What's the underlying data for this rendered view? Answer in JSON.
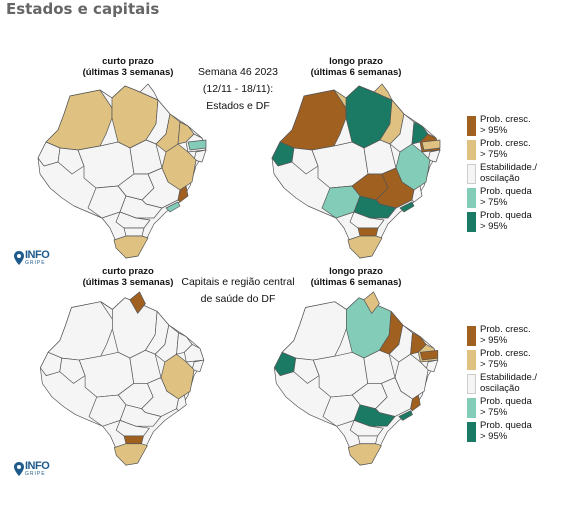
{
  "header": {
    "title": "Estados e capitais"
  },
  "colors": {
    "prob_cresc_95": "#a0601f",
    "prob_cresc_75": "#dfc282",
    "estabilidade": "#f5f5f5",
    "prob_queda_75": "#83cdb8",
    "prob_queda_95": "#1b7a64",
    "border": "#555555"
  },
  "top": {
    "short_title": "curto prazo",
    "short_subtitle": "(últimas 3 semanas)",
    "long_title": "longo prazo",
    "long_subtitle": "(últimas 6 semanas)",
    "center_line1": "Semana 46 2023",
    "center_line2": "(12/11 - 18/11):",
    "center_line3": "Estados e DF"
  },
  "bottom": {
    "short_title": "curto prazo",
    "short_subtitle": "(últimas 3 semanas)",
    "long_title": "longo prazo",
    "long_subtitle": "(últimas 6 semanas)",
    "center_line1": "Capitais e região central",
    "center_line2": "de saúde do DF"
  },
  "legend": {
    "items": [
      {
        "label": "Prob. cresc.\n> 95%",
        "color": "#a0601f"
      },
      {
        "label": "Prob. cresc.\n> 75%",
        "color": "#dfc282"
      },
      {
        "label": "Estabilidade./\noscilação",
        "color": "#f5f5f5"
      },
      {
        "label": "Prob. queda\n> 75%",
        "color": "#83cdb8"
      },
      {
        "label": "Prob. queda\n> 95%",
        "color": "#1b7a64"
      }
    ]
  },
  "logo": {
    "main": "INFO",
    "sub": "GRIPE"
  }
}
